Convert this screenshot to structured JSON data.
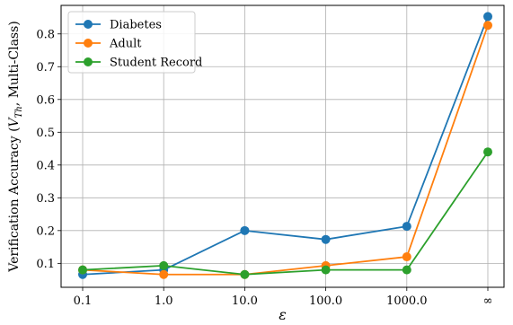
{
  "chart_data": {
    "type": "line",
    "categories": [
      "0.1",
      "1.0",
      "10.0",
      "100.0",
      "1000.0",
      "∞"
    ],
    "series": [
      {
        "name": "Diabetes",
        "color": "#1f77b4",
        "values": [
          0.066,
          0.08,
          0.2,
          0.173,
          0.213,
          0.853
        ]
      },
      {
        "name": "Adult",
        "color": "#ff7f0e",
        "values": [
          0.08,
          0.066,
          0.066,
          0.093,
          0.12,
          0.826
        ]
      },
      {
        "name": "Student Record",
        "color": "#2ca02c",
        "values": [
          0.08,
          0.093,
          0.066,
          0.08,
          0.08,
          0.44
        ]
      }
    ],
    "xlabel": "ε",
    "ylabel": "Verification Accuracy (V_Th, Multi-Class)",
    "ylabel_main": "Verification Accuracy (",
    "ylabel_V": "V",
    "ylabel_sub": "Th",
    "ylabel_tail": ", Multi-Class)",
    "yticks": [
      "0.1",
      "0.2",
      "0.3",
      "0.4",
      "0.5",
      "0.6",
      "0.7",
      "0.8"
    ],
    "ylim": [
      0.027,
      0.887
    ],
    "grid": true,
    "legend_position": "top-left"
  }
}
